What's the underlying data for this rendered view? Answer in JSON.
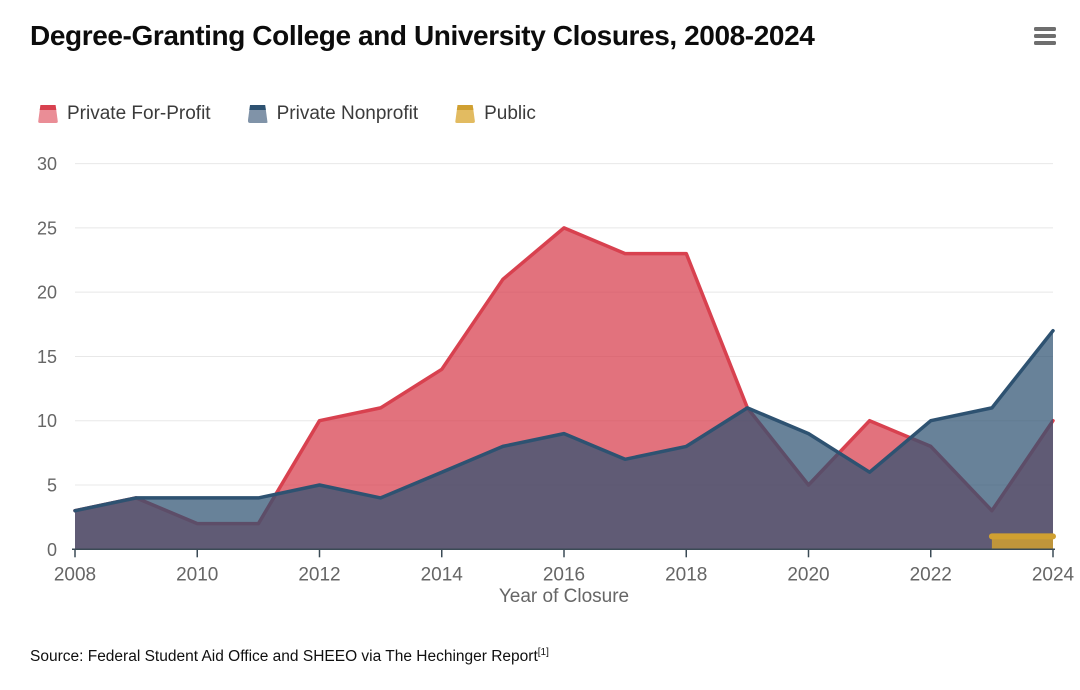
{
  "header": {
    "title": "Degree-Granting College and University Closures, 2008-2024"
  },
  "menu": {
    "icon": "hamburger-icon"
  },
  "chart_data": {
    "type": "area",
    "mode": "overlapping-translucent",
    "title": "Degree-Granting College and University Closures, 2008-2024",
    "xlabel": "Year of Closure",
    "ylabel": "",
    "ylim": [
      0,
      30
    ],
    "grid": true,
    "legend_position": "top-left",
    "x": [
      2008,
      2009,
      2010,
      2011,
      2012,
      2013,
      2014,
      2015,
      2016,
      2017,
      2018,
      2019,
      2020,
      2021,
      2022,
      2023,
      2024
    ],
    "xticks": [
      "2008",
      "2010",
      "2012",
      "2014",
      "2016",
      "2018",
      "2020",
      "2022",
      "2024"
    ],
    "yticks": [
      "0",
      "5",
      "10",
      "15",
      "20",
      "25",
      "30"
    ],
    "series": [
      {
        "name": "Private For-Profit",
        "line_color": "#d8414f",
        "fill_color": "rgba(216,65,79,0.74)",
        "legend_fill": "#ea8d96",
        "line_width": 3.5,
        "values": [
          3,
          4,
          2,
          2,
          10,
          11,
          14,
          21,
          25,
          23,
          23,
          11,
          5,
          10,
          8,
          3,
          10
        ]
      },
      {
        "name": "Private Nonprofit",
        "line_color": "#2e5271",
        "fill_color": "rgba(46,82,113,0.72)",
        "legend_fill": "#8093a8",
        "line_width": 3.5,
        "values": [
          3,
          4,
          4,
          4,
          5,
          4,
          6,
          8,
          9,
          7,
          8,
          11,
          9,
          6,
          10,
          11,
          17
        ]
      },
      {
        "name": "Public",
        "line_color": "#d0a031",
        "fill_color": "rgba(208,160,49,0.85)",
        "legend_fill": "#e2bb61",
        "line_width": 6,
        "values": [
          null,
          null,
          null,
          null,
          null,
          null,
          null,
          null,
          null,
          null,
          null,
          null,
          null,
          null,
          null,
          1,
          1
        ]
      }
    ],
    "colors": {
      "grid": "#e8e8e8",
      "axis": "#3a4a55",
      "tick_label": "#666666"
    }
  },
  "footer": {
    "source_text": "Source: Federal Student Aid Office and SHEEO via The Hechinger Report",
    "source_ref": "[1]"
  }
}
